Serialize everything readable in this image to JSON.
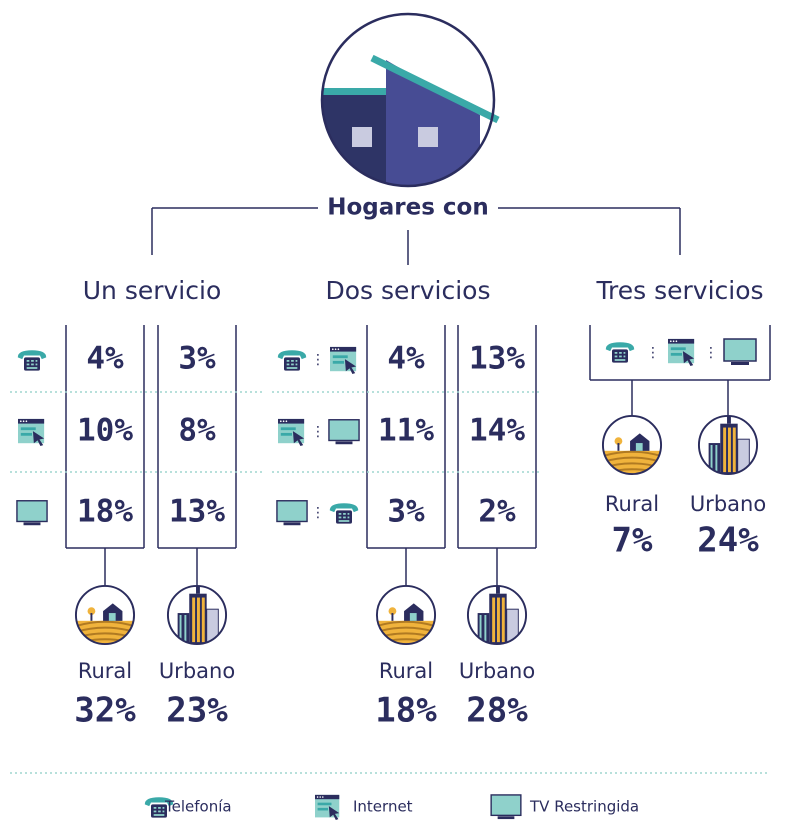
{
  "title": "Hogares con",
  "groups": [
    {
      "label": "Un servicio",
      "rows": [
        [
          "4%",
          "3%"
        ],
        [
          "10%",
          "8%"
        ],
        [
          "18%",
          "13%"
        ]
      ],
      "rural": {
        "label": "Rural",
        "value": "32%"
      },
      "urbano": {
        "label": "Urbano",
        "value": "23%"
      }
    },
    {
      "label": "Dos servicios",
      "rows": [
        [
          "4%",
          "13%"
        ],
        [
          "11%",
          "14%"
        ],
        [
          "3%",
          "2%"
        ]
      ],
      "rural": {
        "label": "Rural",
        "value": "18%"
      },
      "urbano": {
        "label": "Urbano",
        "value": "28%"
      }
    },
    {
      "label": "Tres servicios",
      "rows": [],
      "rural": {
        "label": "Rural",
        "value": "7%"
      },
      "urbano": {
        "label": "Urbano",
        "value": "24%"
      }
    }
  ],
  "legend": [
    "Telefonía",
    "Internet",
    "TV Restringida"
  ]
}
